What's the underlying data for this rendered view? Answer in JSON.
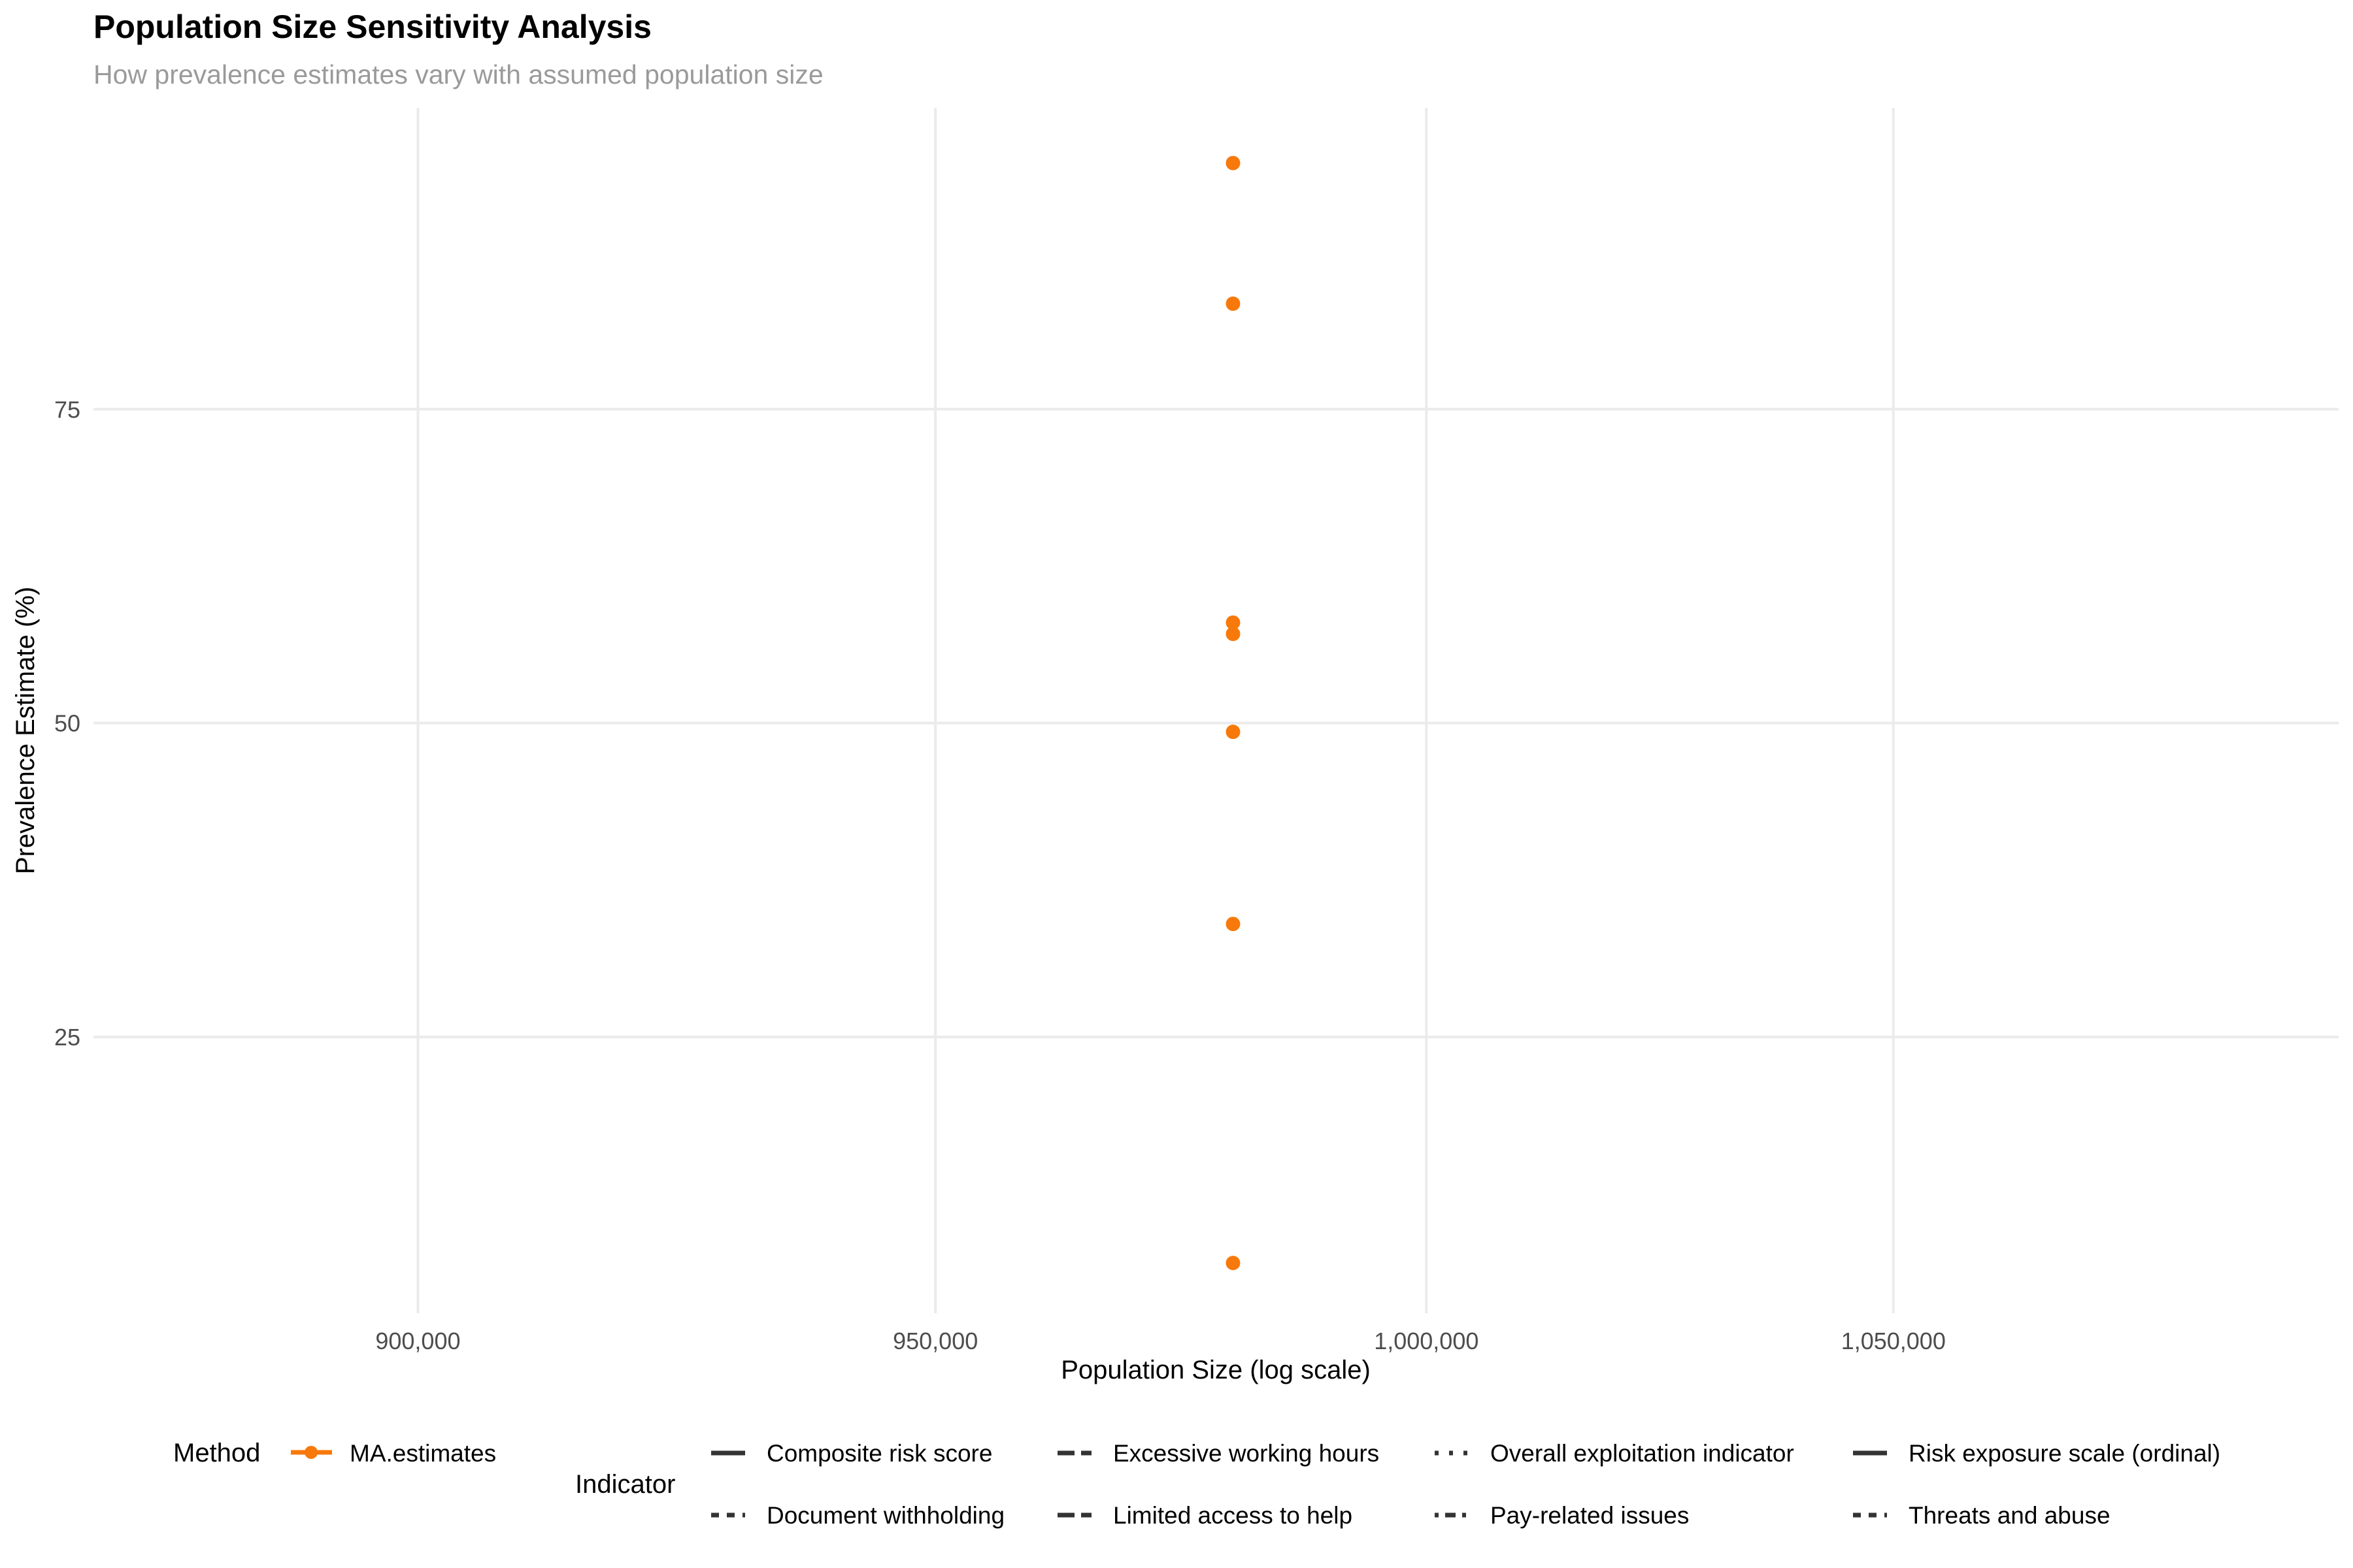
{
  "chart_data": {
    "type": "scatter",
    "title": "Population Size Sensitivity Analysis",
    "subtitle": "How prevalence estimates vary with assumed population size",
    "xlabel": "Population Size (log scale)",
    "ylabel": "Prevalence Estimate (%)",
    "x_scale": "log",
    "xlim": [
      870000,
      1100000
    ],
    "ylim": [
      3,
      99
    ],
    "x_ticks": [
      900000,
      950000,
      1000000,
      1050000
    ],
    "x_tick_labels": [
      "900,000",
      "950,000",
      "1,000,000",
      "1,050,000"
    ],
    "y_ticks": [
      25,
      50,
      75
    ],
    "y_tick_labels": [
      "25",
      "50",
      "75"
    ],
    "grid": true,
    "series": [
      {
        "name": "MA.estimates",
        "color": "#f8790b",
        "points": [
          {
            "x": 980000,
            "y": 94.6
          },
          {
            "x": 980000,
            "y": 83.4
          },
          {
            "x": 980000,
            "y": 58.0
          },
          {
            "x": 980000,
            "y": 57.1
          },
          {
            "x": 980000,
            "y": 49.3
          },
          {
            "x": 980000,
            "y": 34.0
          },
          {
            "x": 980000,
            "y": 7.0
          }
        ]
      }
    ],
    "legend": {
      "placement": "bottom",
      "method_title": "Method",
      "method_items": [
        "MA.estimates"
      ],
      "indicator_title": "Indicator",
      "indicator_items": [
        {
          "label": "Composite risk score",
          "dash": "solid"
        },
        {
          "label": "Excessive working hours",
          "dash": "longdash"
        },
        {
          "label": "Overall exploitation indicator",
          "dash": "dotted"
        },
        {
          "label": "Risk exposure scale (ordinal)",
          "dash": "solid"
        },
        {
          "label": "Document withholding",
          "dash": "dashed"
        },
        {
          "label": "Limited access to help",
          "dash": "longdash"
        },
        {
          "label": "Pay-related issues",
          "dash": "dotdash"
        },
        {
          "label": "Threats and abuse",
          "dash": "dashed"
        }
      ]
    }
  }
}
